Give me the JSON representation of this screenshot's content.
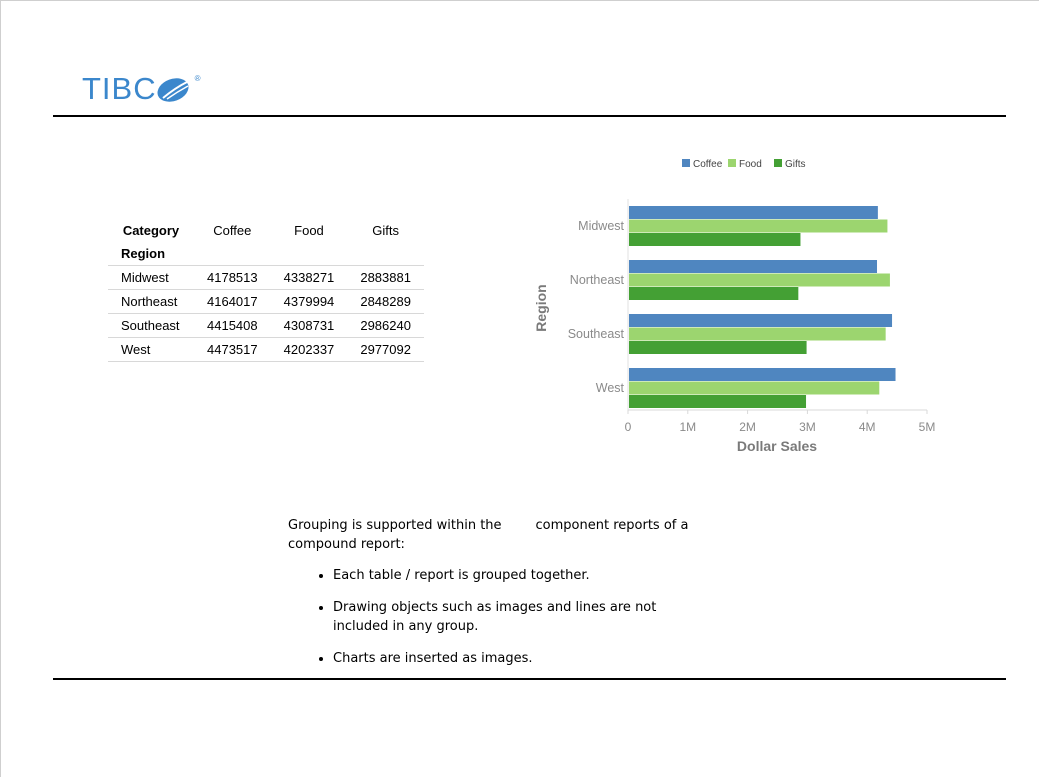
{
  "logo": {
    "text": "TIBC",
    "registered": "®"
  },
  "table": {
    "header_col": "Category",
    "header_row": "Region",
    "columns": [
      "Coffee",
      "Food",
      "Gifts"
    ],
    "rows": [
      {
        "region": "Midwest",
        "values": [
          "4178513",
          "4338271",
          "2883881"
        ]
      },
      {
        "region": "Northeast",
        "values": [
          "4164017",
          "4379994",
          "2848289"
        ]
      },
      {
        "region": "Southeast",
        "values": [
          "4415408",
          "4308731",
          "2986240"
        ]
      },
      {
        "region": "West",
        "values": [
          "4473517",
          "4202337",
          "2977092"
        ]
      }
    ]
  },
  "text": {
    "intro_a": "Grouping is supported within the",
    "intro_b": "component reports of a compound report:",
    "bullets": [
      "Each table / report is grouped together.",
      "Drawing objects such as images and lines are not included in any group.",
      "Charts are inserted as images."
    ]
  },
  "chart_data": {
    "type": "bar",
    "orientation": "horizontal",
    "categories": [
      "Midwest",
      "Northeast",
      "Southeast",
      "West"
    ],
    "series": [
      {
        "name": "Coffee",
        "color": "#4f86c0",
        "values": [
          4178513,
          4164017,
          4415408,
          4473517
        ]
      },
      {
        "name": "Food",
        "color": "#9cd56f",
        "values": [
          4338271,
          4379994,
          4308731,
          4202337
        ]
      },
      {
        "name": "Gifts",
        "color": "#44a034",
        "values": [
          2883881,
          2848289,
          2986240,
          2977092
        ]
      }
    ],
    "xlabel": "Dollar Sales",
    "ylabel": "Region",
    "xlim": [
      0,
      5000000
    ],
    "xticks": [
      "0",
      "1M",
      "2M",
      "3M",
      "4M",
      "5M"
    ],
    "legend": "top"
  }
}
